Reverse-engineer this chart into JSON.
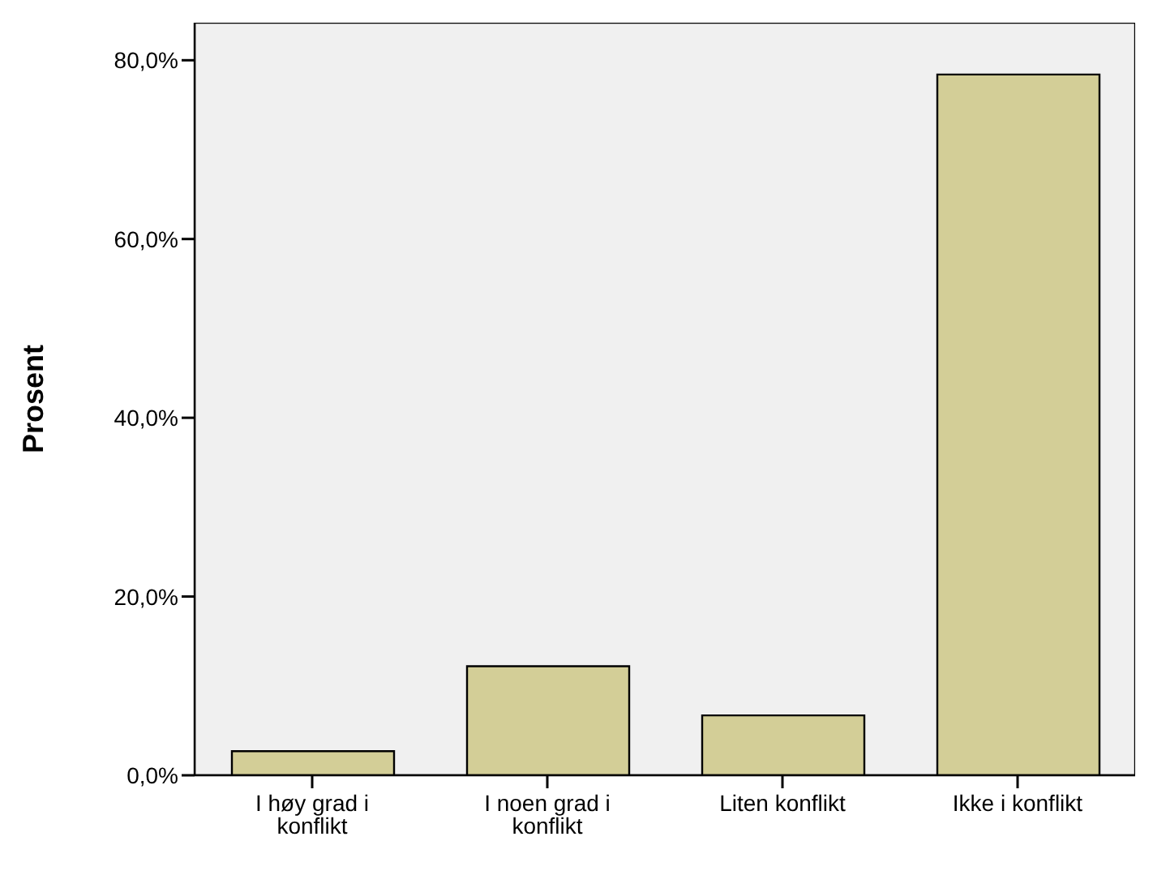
{
  "chart_data": {
    "type": "bar",
    "ylabel": "Prosent",
    "categories": [
      "I høy grad i konflikt",
      "I noen grad i konflikt",
      "Liten konflikt",
      "Ikke i konflikt"
    ],
    "values": [
      2.7,
      12.2,
      6.7,
      78.4
    ],
    "color": "#d3ce97",
    "ylim": [
      0,
      84.2
    ],
    "yticks": [
      {
        "value": 0,
        "label": "0,0%"
      },
      {
        "value": 20,
        "label": "20,0%"
      },
      {
        "value": 40,
        "label": "40,0%"
      },
      {
        "value": 60,
        "label": "60,0%"
      },
      {
        "value": 80,
        "label": "80,0%"
      }
    ],
    "grid": false
  }
}
